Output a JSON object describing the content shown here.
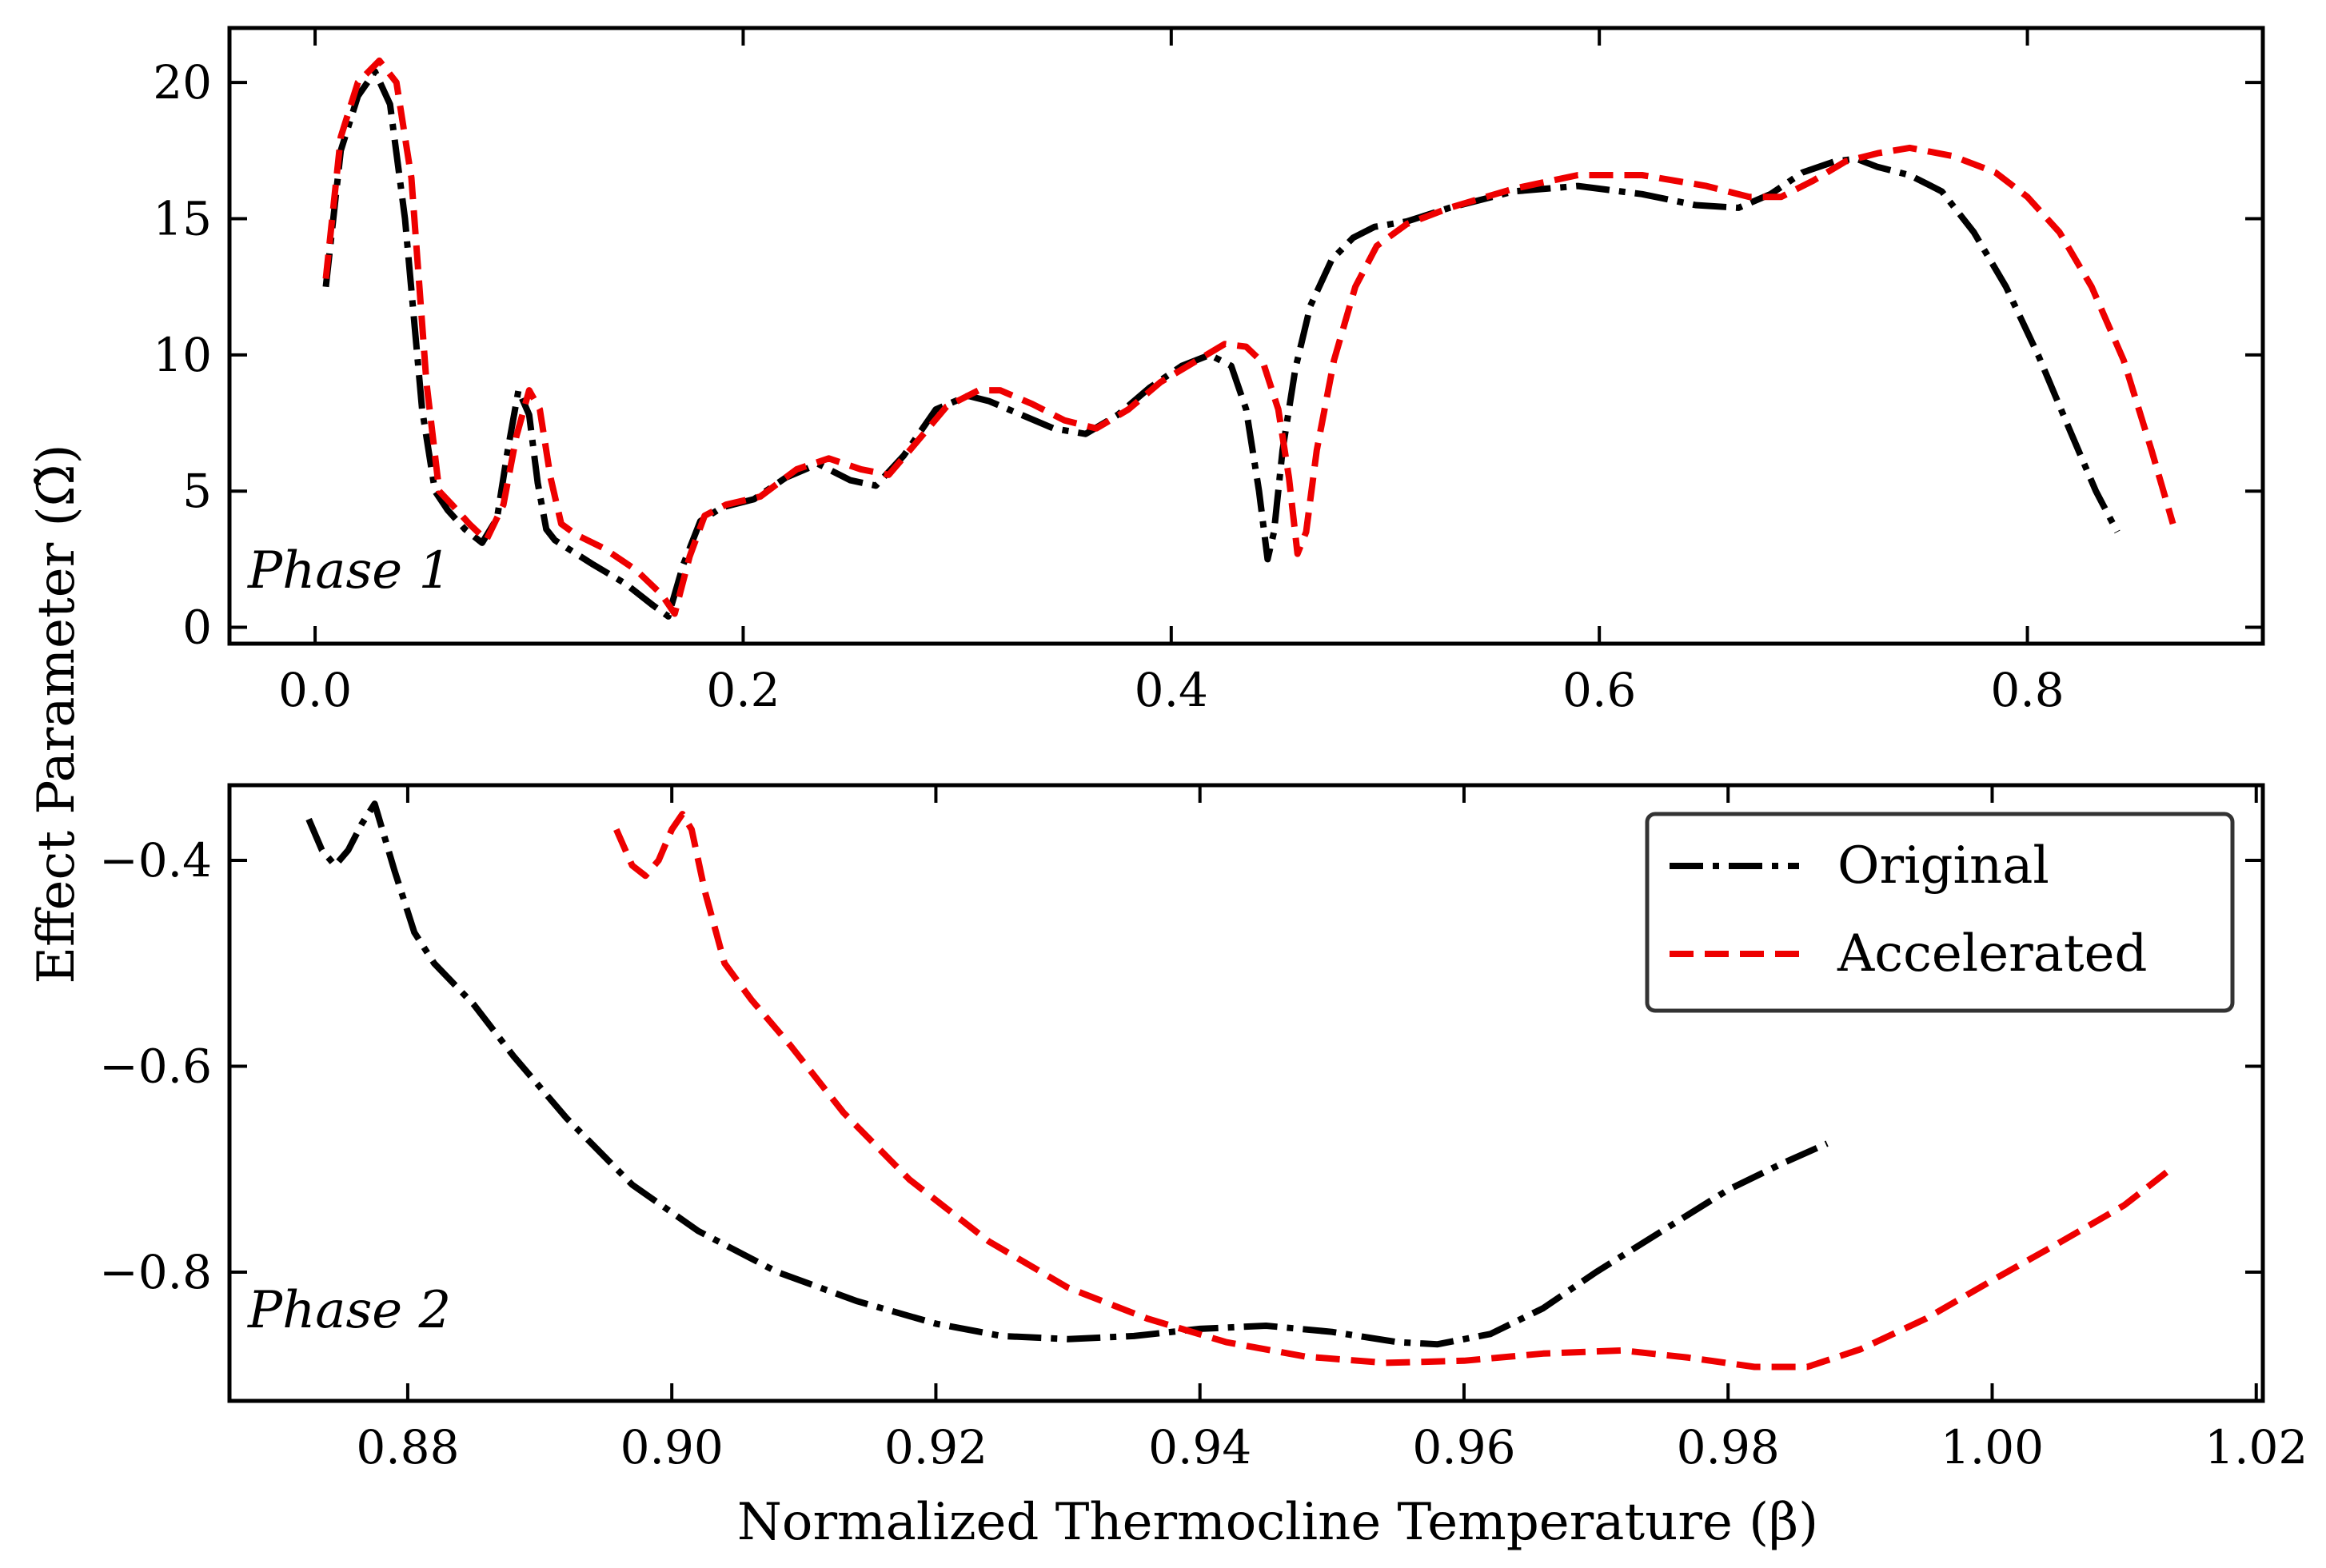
{
  "chart_data": [
    {
      "id": "phase1",
      "type": "line",
      "annotation": "Phase 1",
      "xlim": [
        -0.04,
        0.91
      ],
      "ylim": [
        -0.6,
        22.0
      ],
      "xticks": [
        0.0,
        0.2,
        0.4,
        0.6,
        0.8
      ],
      "xtick_labels": [
        "0.0",
        "0.2",
        "0.4",
        "0.6",
        "0.8"
      ],
      "yticks": [
        0,
        5,
        10,
        15,
        20
      ],
      "ytick_labels": [
        "0",
        "5",
        "10",
        "15",
        "20"
      ],
      "series": [
        {
          "name": "Original",
          "style": "dashdot",
          "color": "#000000",
          "x": [
            0.005,
            0.012,
            0.02,
            0.028,
            0.035,
            0.042,
            0.05,
            0.056,
            0.062,
            0.07,
            0.078,
            0.085,
            0.09,
            0.095,
            0.1,
            0.104,
            0.108,
            0.112,
            0.118,
            0.13,
            0.145,
            0.158,
            0.165,
            0.172,
            0.18,
            0.19,
            0.205,
            0.22,
            0.235,
            0.25,
            0.262,
            0.275,
            0.29,
            0.305,
            0.315,
            0.33,
            0.345,
            0.36,
            0.375,
            0.39,
            0.405,
            0.418,
            0.428,
            0.435,
            0.441,
            0.445,
            0.448,
            0.452,
            0.458,
            0.465,
            0.475,
            0.485,
            0.495,
            0.51,
            0.53,
            0.56,
            0.59,
            0.62,
            0.645,
            0.665,
            0.68,
            0.695,
            0.71,
            0.72,
            0.73,
            0.745,
            0.76,
            0.775,
            0.79,
            0.805,
            0.82,
            0.832,
            0.842
          ],
          "y": [
            12.5,
            17.5,
            19.5,
            20.4,
            19.2,
            15.0,
            8.0,
            5.0,
            4.3,
            3.6,
            3.1,
            4.0,
            6.5,
            8.7,
            7.8,
            5.3,
            3.6,
            3.2,
            2.9,
            2.3,
            1.6,
            0.8,
            0.4,
            2.3,
            3.9,
            4.4,
            4.7,
            5.5,
            6.0,
            5.4,
            5.2,
            6.3,
            8.0,
            8.5,
            8.3,
            7.8,
            7.3,
            7.1,
            7.8,
            8.8,
            9.6,
            10.0,
            9.6,
            8.0,
            5.0,
            2.5,
            3.5,
            6.5,
            9.5,
            11.8,
            13.5,
            14.3,
            14.7,
            14.9,
            15.4,
            16.0,
            16.2,
            15.9,
            15.5,
            15.4,
            15.9,
            16.7,
            17.1,
            17.2,
            16.9,
            16.6,
            16.0,
            14.5,
            12.5,
            10.0,
            7.2,
            5.0,
            3.5
          ]
        },
        {
          "name": "Accelerated",
          "style": "dashed",
          "color": "#ee0000",
          "x": [
            0.005,
            0.012,
            0.02,
            0.03,
            0.038,
            0.045,
            0.052,
            0.058,
            0.064,
            0.072,
            0.08,
            0.088,
            0.094,
            0.1,
            0.105,
            0.11,
            0.115,
            0.122,
            0.135,
            0.15,
            0.162,
            0.168,
            0.175,
            0.182,
            0.192,
            0.208,
            0.225,
            0.24,
            0.255,
            0.268,
            0.28,
            0.295,
            0.31,
            0.32,
            0.335,
            0.35,
            0.365,
            0.38,
            0.395,
            0.41,
            0.425,
            0.435,
            0.443,
            0.45,
            0.455,
            0.459,
            0.463,
            0.468,
            0.476,
            0.486,
            0.496,
            0.51,
            0.53,
            0.56,
            0.59,
            0.62,
            0.65,
            0.67,
            0.685,
            0.7,
            0.715,
            0.73,
            0.745,
            0.765,
            0.785,
            0.8,
            0.815,
            0.83,
            0.845,
            0.858,
            0.868
          ],
          "y": [
            12.8,
            18.0,
            20.0,
            20.8,
            20.0,
            16.5,
            9.0,
            5.0,
            4.5,
            3.8,
            3.2,
            4.5,
            7.0,
            8.7,
            8.0,
            5.5,
            3.8,
            3.4,
            2.9,
            2.1,
            1.2,
            0.5,
            2.6,
            4.1,
            4.5,
            4.8,
            5.8,
            6.2,
            5.8,
            5.6,
            6.7,
            8.1,
            8.7,
            8.7,
            8.2,
            7.6,
            7.3,
            8.0,
            9.0,
            9.7,
            10.4,
            10.3,
            9.7,
            8.0,
            5.5,
            2.7,
            3.5,
            6.5,
            9.8,
            12.5,
            14.0,
            14.8,
            15.4,
            16.1,
            16.6,
            16.6,
            16.2,
            15.8,
            15.8,
            16.4,
            17.1,
            17.4,
            17.6,
            17.3,
            16.7,
            15.8,
            14.5,
            12.5,
            9.8,
            6.5,
            3.8
          ]
        }
      ]
    },
    {
      "id": "phase2",
      "type": "line",
      "annotation": "Phase 2",
      "title": "",
      "xlabel": "Normalized Thermocline Temperature (β)",
      "ylabel": "Effect Parameter (Ω̃)",
      "xlim": [
        0.8665,
        1.0205
      ],
      "ylim": [
        -0.925,
        -0.327
      ],
      "xticks": [
        0.88,
        0.9,
        0.92,
        0.94,
        0.96,
        0.98,
        1.0,
        1.02
      ],
      "xtick_labels": [
        "0.88",
        "0.90",
        "0.92",
        "0.94",
        "0.96",
        "0.98",
        "1.00",
        "1.02"
      ],
      "yticks": [
        -0.8,
        -0.6,
        -0.4
      ],
      "ytick_labels": [
        "−0.8",
        "−0.6",
        "−0.4"
      ],
      "legend_position": "top-right",
      "series": [
        {
          "name": "Original",
          "style": "dashdot",
          "color": "#000000",
          "x": [
            0.8725,
            0.8735,
            0.8745,
            0.8755,
            0.8765,
            0.8775,
            0.879,
            0.8805,
            0.882,
            0.885,
            0.888,
            0.892,
            0.897,
            0.902,
            0.908,
            0.914,
            0.92,
            0.925,
            0.93,
            0.935,
            0.94,
            0.945,
            0.95,
            0.955,
            0.958,
            0.962,
            0.966,
            0.97,
            0.975,
            0.98,
            0.984,
            0.9875
          ],
          "y": [
            -0.36,
            -0.39,
            -0.405,
            -0.39,
            -0.365,
            -0.345,
            -0.41,
            -0.47,
            -0.5,
            -0.54,
            -0.59,
            -0.65,
            -0.715,
            -0.76,
            -0.8,
            -0.828,
            -0.85,
            -0.862,
            -0.865,
            -0.862,
            -0.855,
            -0.852,
            -0.858,
            -0.868,
            -0.87,
            -0.86,
            -0.835,
            -0.8,
            -0.76,
            -0.72,
            -0.695,
            -0.675
          ]
        },
        {
          "name": "Accelerated",
          "style": "dashed",
          "color": "#ee0000",
          "x": [
            0.8958,
            0.897,
            0.898,
            0.899,
            0.9,
            0.9008,
            0.9015,
            0.9025,
            0.904,
            0.906,
            0.909,
            0.913,
            0.918,
            0.924,
            0.93,
            0.936,
            0.942,
            0.948,
            0.954,
            0.96,
            0.966,
            0.972,
            0.977,
            0.982,
            0.986,
            0.99,
            0.995,
            1.0,
            1.005,
            1.01,
            1.0135
          ],
          "y": [
            -0.37,
            -0.405,
            -0.415,
            -0.4,
            -0.37,
            -0.355,
            -0.37,
            -0.43,
            -0.5,
            -0.535,
            -0.58,
            -0.645,
            -0.71,
            -0.77,
            -0.815,
            -0.845,
            -0.868,
            -0.882,
            -0.888,
            -0.886,
            -0.879,
            -0.876,
            -0.883,
            -0.892,
            -0.892,
            -0.875,
            -0.845,
            -0.808,
            -0.772,
            -0.735,
            -0.7
          ]
        }
      ]
    }
  ]
}
